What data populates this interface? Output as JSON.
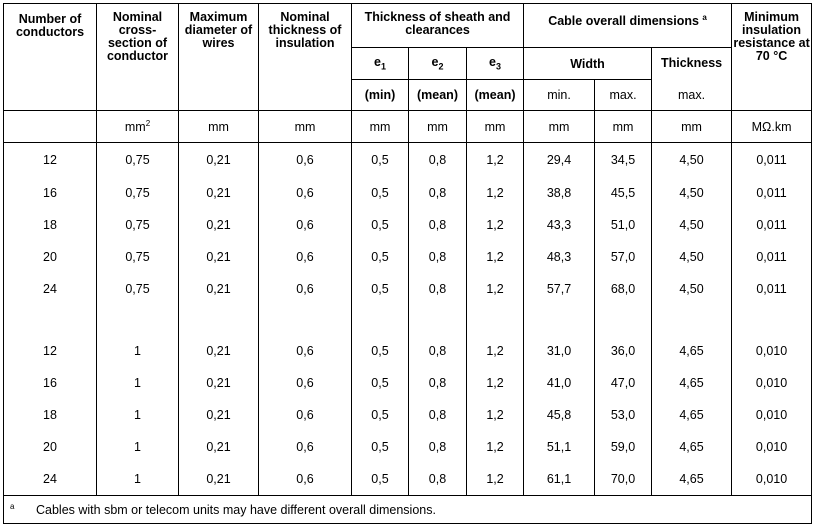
{
  "headers": {
    "conductors": "Number of conductors",
    "cross_section": "Nominal cross-section of conductor",
    "max_diameter": "Maximum diameter of wires",
    "insulation": "Nominal thickness of insulation",
    "sheath": "Thickness of sheath and clearances",
    "e1": "e",
    "e1_sub": "1",
    "e1_q": "(min)",
    "e2": "e",
    "e2_sub": "2",
    "e2_q": "(mean)",
    "e3": "e",
    "e3_sub": "3",
    "e3_q": "(mean)",
    "dimensions": "Cable overall dimensions",
    "dimensions_note": "a",
    "width": "Width",
    "width_min": "min.",
    "width_max": "max.",
    "thickness": "Thickness",
    "thickness_max": "max.",
    "resistance": "Minimum insulation resistance at 70 °C"
  },
  "units": {
    "conductors": "",
    "cross_section": "mm",
    "cross_section_exp": "2",
    "max_diameter": "mm",
    "insulation": "mm",
    "e1": "mm",
    "e2": "mm",
    "e3": "mm",
    "width_min": "mm",
    "width_max": "mm",
    "thickness": "mm",
    "resistance": "MΩ.km"
  },
  "group1": [
    [
      "12",
      "0,75",
      "0,21",
      "0,6",
      "0,5",
      "0,8",
      "1,2",
      "29,4",
      "34,5",
      "4,50",
      "0,011"
    ],
    [
      "16",
      "0,75",
      "0,21",
      "0,6",
      "0,5",
      "0,8",
      "1,2",
      "38,8",
      "45,5",
      "4,50",
      "0,011"
    ],
    [
      "18",
      "0,75",
      "0,21",
      "0,6",
      "0,5",
      "0,8",
      "1,2",
      "43,3",
      "51,0",
      "4,50",
      "0,011"
    ],
    [
      "20",
      "0,75",
      "0,21",
      "0,6",
      "0,5",
      "0,8",
      "1,2",
      "48,3",
      "57,0",
      "4,50",
      "0,011"
    ],
    [
      "24",
      "0,75",
      "0,21",
      "0,6",
      "0,5",
      "0,8",
      "1,2",
      "57,7",
      "68,0",
      "4,50",
      "0,011"
    ]
  ],
  "group2": [
    [
      "12",
      "1",
      "0,21",
      "0,6",
      "0,5",
      "0,8",
      "1,2",
      "31,0",
      "36,0",
      "4,65",
      "0,010"
    ],
    [
      "16",
      "1",
      "0,21",
      "0,6",
      "0,5",
      "0,8",
      "1,2",
      "41,0",
      "47,0",
      "4,65",
      "0,010"
    ],
    [
      "18",
      "1",
      "0,21",
      "0,6",
      "0,5",
      "0,8",
      "1,2",
      "45,8",
      "53,0",
      "4,65",
      "0,010"
    ],
    [
      "20",
      "1",
      "0,21",
      "0,6",
      "0,5",
      "0,8",
      "1,2",
      "51,1",
      "59,0",
      "4,65",
      "0,010"
    ],
    [
      "24",
      "1",
      "0,21",
      "0,6",
      "0,5",
      "0,8",
      "1,2",
      "61,1",
      "70,0",
      "4,65",
      "0,010"
    ]
  ],
  "footnote": {
    "mark": "a",
    "text": "Cables with sbm or telecom units may have different overall dimensions."
  }
}
